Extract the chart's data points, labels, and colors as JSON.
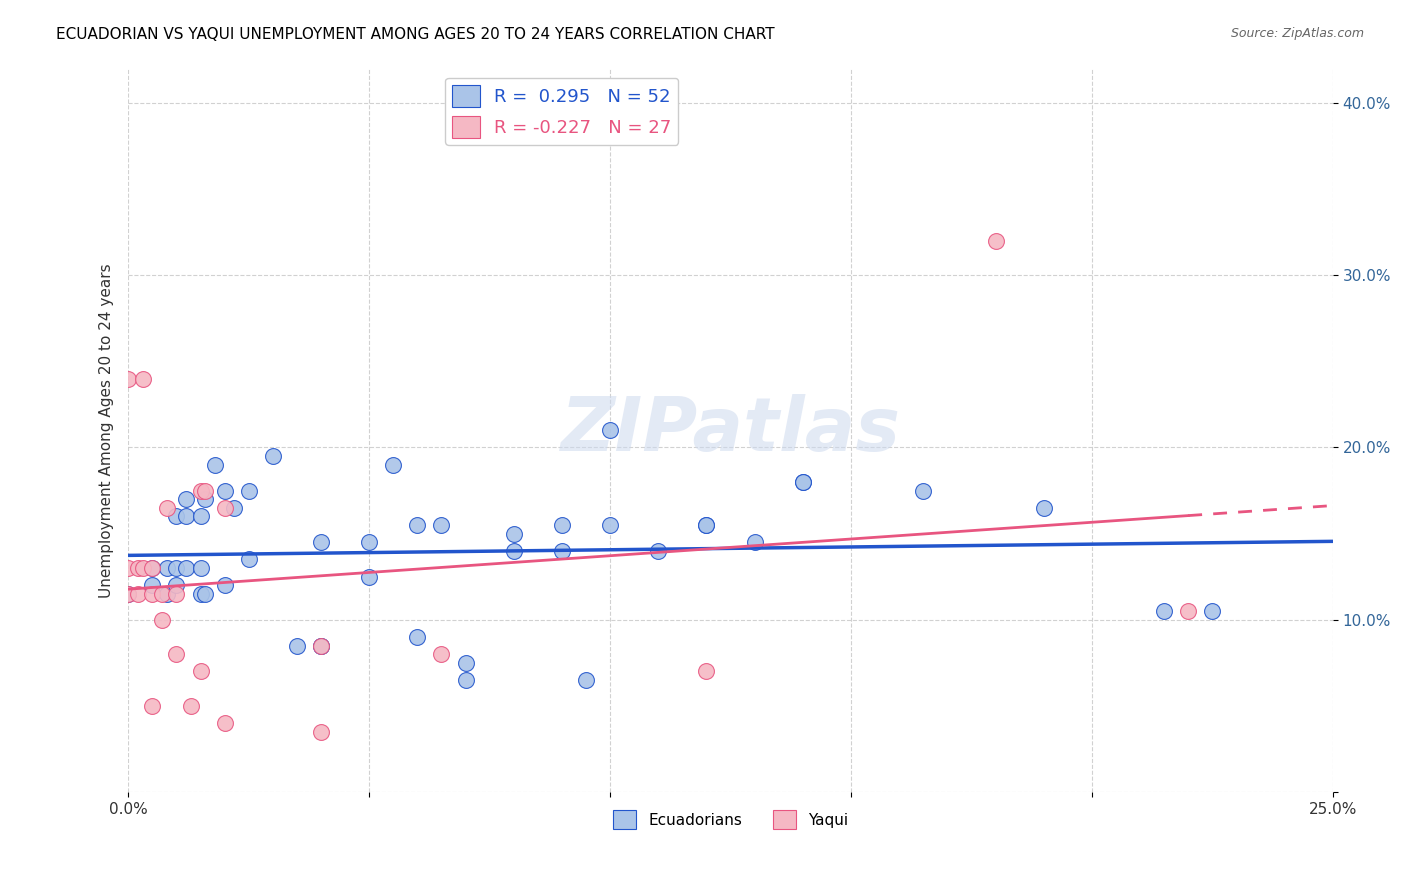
{
  "title": "ECUADORIAN VS YAQUI UNEMPLOYMENT AMONG AGES 20 TO 24 YEARS CORRELATION CHART",
  "source": "Source: ZipAtlas.com",
  "ylabel": "Unemployment Among Ages 20 to 24 years",
  "xlim": [
    0.0,
    0.25
  ],
  "ylim": [
    0.0,
    0.42
  ],
  "xticks": [
    0.0,
    0.05,
    0.1,
    0.15,
    0.2,
    0.25
  ],
  "yticks": [
    0.0,
    0.1,
    0.2,
    0.3,
    0.4
  ],
  "background_color": "#ffffff",
  "grid_color": "#cccccc",
  "ecuadorians_color": "#aac4e8",
  "yaqui_color": "#f5b8c4",
  "ecuadorians_line_color": "#2255cc",
  "yaqui_line_color": "#e85580",
  "legend_label_1": "R =  0.295   N = 52",
  "legend_label_2": "R = -0.227   N = 27",
  "watermark": "ZIPatlas",
  "ecuadorians_x": [
    0.0,
    0.005,
    0.005,
    0.008,
    0.008,
    0.01,
    0.01,
    0.01,
    0.012,
    0.012,
    0.012,
    0.015,
    0.015,
    0.015,
    0.016,
    0.016,
    0.018,
    0.02,
    0.02,
    0.022,
    0.025,
    0.025,
    0.03,
    0.035,
    0.04,
    0.04,
    0.04,
    0.05,
    0.05,
    0.055,
    0.06,
    0.06,
    0.065,
    0.07,
    0.07,
    0.08,
    0.08,
    0.09,
    0.09,
    0.095,
    0.1,
    0.1,
    0.11,
    0.12,
    0.12,
    0.13,
    0.14,
    0.14,
    0.165,
    0.19,
    0.215,
    0.225
  ],
  "ecuadorians_y": [
    0.115,
    0.12,
    0.13,
    0.115,
    0.13,
    0.12,
    0.13,
    0.16,
    0.13,
    0.16,
    0.17,
    0.115,
    0.13,
    0.16,
    0.115,
    0.17,
    0.19,
    0.12,
    0.175,
    0.165,
    0.135,
    0.175,
    0.195,
    0.085,
    0.085,
    0.085,
    0.145,
    0.125,
    0.145,
    0.19,
    0.09,
    0.155,
    0.155,
    0.065,
    0.075,
    0.14,
    0.15,
    0.14,
    0.155,
    0.065,
    0.21,
    0.155,
    0.14,
    0.155,
    0.155,
    0.145,
    0.18,
    0.18,
    0.175,
    0.165,
    0.105,
    0.105
  ],
  "yaqui_x": [
    0.0,
    0.0,
    0.0,
    0.002,
    0.002,
    0.003,
    0.003,
    0.005,
    0.005,
    0.005,
    0.007,
    0.007,
    0.008,
    0.01,
    0.01,
    0.013,
    0.015,
    0.015,
    0.016,
    0.02,
    0.02,
    0.04,
    0.04,
    0.065,
    0.12,
    0.18,
    0.22
  ],
  "yaqui_y": [
    0.115,
    0.13,
    0.24,
    0.13,
    0.115,
    0.24,
    0.13,
    0.05,
    0.115,
    0.13,
    0.115,
    0.1,
    0.165,
    0.115,
    0.08,
    0.05,
    0.07,
    0.175,
    0.175,
    0.165,
    0.04,
    0.035,
    0.085,
    0.08,
    0.07,
    0.32,
    0.105
  ]
}
